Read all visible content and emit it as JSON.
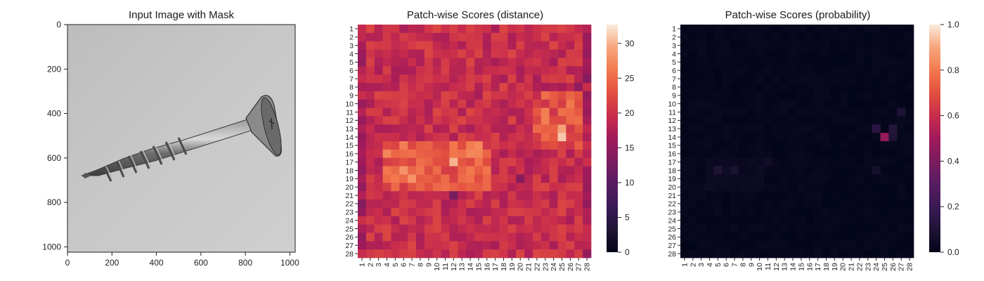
{
  "figure": {
    "panel1_title": "Input Image with Mask",
    "panel2_title": "Patch-wise Scores (distance)",
    "panel3_title": "Patch-wise Scores (probability)"
  },
  "chart_data": [
    {
      "type": "image",
      "title": "Input Image with Mask",
      "xlim": [
        0,
        1024
      ],
      "ylim": [
        1024,
        0
      ],
      "xticks": [
        "0",
        "200",
        "400",
        "600",
        "800",
        "1000"
      ],
      "yticks": [
        "0",
        "200",
        "400",
        "600",
        "800",
        "1000"
      ],
      "content": "grayscale photograph of a metal screw on a gray background"
    },
    {
      "type": "heatmap",
      "title": "Patch-wise Scores (distance)",
      "rows": 28,
      "cols": 28,
      "xticklabels": [
        "1",
        "2",
        "3",
        "4",
        "5",
        "6",
        "7",
        "8",
        "9",
        "10",
        "11",
        "12",
        "13",
        "14",
        "15",
        "16",
        "17",
        "18",
        "19",
        "20",
        "21",
        "22",
        "23",
        "24",
        "25",
        "26",
        "27",
        "28"
      ],
      "yticklabels": [
        "1",
        "2",
        "3",
        "4",
        "5",
        "6",
        "7",
        "8",
        "9",
        "10",
        "11",
        "12",
        "13",
        "14",
        "15",
        "16",
        "17",
        "18",
        "19",
        "20",
        "21",
        "22",
        "23",
        "24",
        "25",
        "26",
        "27",
        "28"
      ],
      "colorbar": {
        "min": 0,
        "max": 32.7,
        "ticks": [
          "0",
          "5",
          "10",
          "15",
          "20",
          "25",
          "30"
        ]
      },
      "hotspots": [
        {
          "row": 14,
          "col": 25,
          "value": 31
        },
        {
          "row": 13,
          "col": 25,
          "value": 29
        },
        {
          "row": 17,
          "col": 12,
          "value": 30
        },
        {
          "row": 18,
          "col": 6,
          "value": 28
        },
        {
          "row": 19,
          "col": 7,
          "value": 28
        },
        {
          "row": 16,
          "col": 15,
          "value": 27
        }
      ],
      "lowspots": [
        {
          "row": 22,
          "col": 1,
          "value": 14
        },
        {
          "row": 21,
          "col": 12,
          "value": 13
        },
        {
          "row": 19,
          "col": 20,
          "value": 14
        },
        {
          "row": 7,
          "col": 28,
          "value": 14
        },
        {
          "row": 8,
          "col": 27,
          "value": 15
        }
      ]
    },
    {
      "type": "heatmap",
      "title": "Patch-wise Scores (probability)",
      "rows": 28,
      "cols": 28,
      "xticklabels": [
        "1",
        "2",
        "3",
        "4",
        "5",
        "6",
        "7",
        "8",
        "9",
        "10",
        "11",
        "12",
        "13",
        "14",
        "15",
        "16",
        "17",
        "18",
        "19",
        "20",
        "21",
        "22",
        "23",
        "24",
        "25",
        "26",
        "27",
        "28"
      ],
      "yticklabels": [
        "1",
        "2",
        "3",
        "4",
        "5",
        "6",
        "7",
        "8",
        "9",
        "10",
        "11",
        "12",
        "13",
        "14",
        "15",
        "16",
        "17",
        "18",
        "19",
        "20",
        "21",
        "22",
        "23",
        "24",
        "25",
        "26",
        "27",
        "28"
      ],
      "colorbar": {
        "min": 0.0,
        "max": 1.0,
        "ticks": [
          "0.0",
          "0.2",
          "0.4",
          "0.6",
          "0.8",
          "1.0"
        ]
      },
      "peak": {
        "row": 14,
        "col": 25,
        "value": 0.47
      },
      "hotspots": [
        {
          "row": 13,
          "col": 24,
          "value": 0.14
        },
        {
          "row": 13,
          "col": 26,
          "value": 0.12
        },
        {
          "row": 14,
          "col": 26,
          "value": 0.1
        },
        {
          "row": 11,
          "col": 27,
          "value": 0.09
        },
        {
          "row": 18,
          "col": 5,
          "value": 0.1
        },
        {
          "row": 18,
          "col": 7,
          "value": 0.08
        },
        {
          "row": 17,
          "col": 11,
          "value": 0.05
        },
        {
          "row": 18,
          "col": 24,
          "value": 0.07
        }
      ]
    }
  ]
}
